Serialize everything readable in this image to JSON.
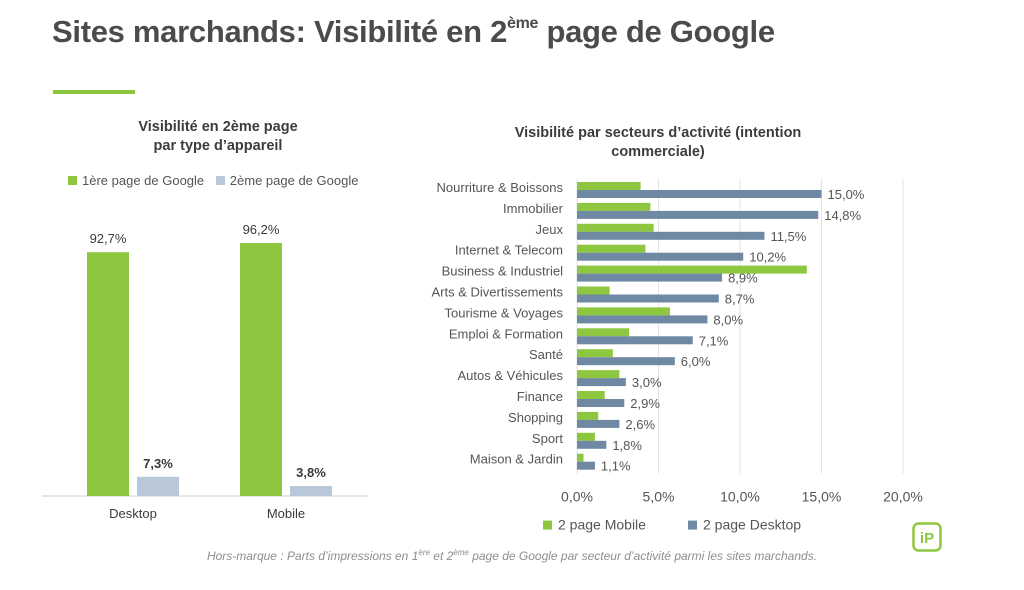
{
  "title": {
    "main": "Sites marchands: Visibilité en 2",
    "sup": "ème",
    "rest": " page de Google"
  },
  "colors": {
    "green": "#8dc63f",
    "light_blue": "#b9c8d8",
    "steel_blue": "#6f88a3",
    "grid": "#e3e3e3"
  },
  "chart_data": [
    {
      "type": "bar",
      "title_line1": "Visibilité en 2ème page",
      "title_line2": "par type d’appareil",
      "categories": [
        "Desktop",
        "Mobile"
      ],
      "series": [
        {
          "name": "1ère page de Google",
          "values": [
            92.7,
            96.2
          ],
          "labels": [
            "92,7%",
            "96,2%"
          ]
        },
        {
          "name": "2ème page de Google",
          "values": [
            7.3,
            3.8
          ],
          "labels": [
            "7,3%",
            "3,8%"
          ]
        }
      ],
      "ylim": [
        0,
        100
      ]
    },
    {
      "type": "bar",
      "orientation": "horizontal",
      "title_line1": "Visibilité par secteurs d’activité (intention",
      "title_line2": "commerciale)",
      "categories": [
        "Nourriture & Boissons",
        "Immobilier",
        "Jeux",
        "Internet & Telecom",
        "Business & Industriel",
        "Arts & Divertissements",
        "Tourisme & Voyages",
        "Emploi & Formation",
        "Santé",
        "Autos & Véhicules",
        "Finance",
        "Shopping",
        "Sport",
        "Maison & Jardin"
      ],
      "series": [
        {
          "name": "2 page Mobile",
          "values": [
            3.9,
            4.5,
            4.7,
            4.2,
            14.1,
            2.0,
            5.7,
            3.2,
            2.2,
            2.6,
            1.7,
            1.3,
            1.1,
            0.4
          ]
        },
        {
          "name": "2 page Desktop",
          "values": [
            15.0,
            14.8,
            11.5,
            10.2,
            8.9,
            8.7,
            8.0,
            7.1,
            6.0,
            3.0,
            2.9,
            2.6,
            1.8,
            1.1
          ],
          "labels": [
            "15,0%",
            "14,8%",
            "11,5%",
            "10,2%",
            "8,9%",
            "8,7%",
            "8,0%",
            "7,1%",
            "6,0%",
            "3,0%",
            "2,9%",
            "2,6%",
            "1,8%",
            "1,1%"
          ]
        }
      ],
      "x_ticks": [
        0,
        5,
        10,
        15,
        20
      ],
      "x_tick_labels": [
        "0,0%",
        "5,0%",
        "10,0%",
        "15,0%",
        "20,0%"
      ],
      "xlim": [
        0,
        20
      ],
      "grid": true
    }
  ],
  "footnote": {
    "part1": "Hors-marque : Parts d’impressions en 1",
    "sup1": "ère",
    "part2": " et 2",
    "sup2": "ème",
    "part3": " page de Google par secteur d’activité parmi les sites marchands."
  },
  "logo": {
    "icon": "ip-logo-icon",
    "text": "iP"
  }
}
